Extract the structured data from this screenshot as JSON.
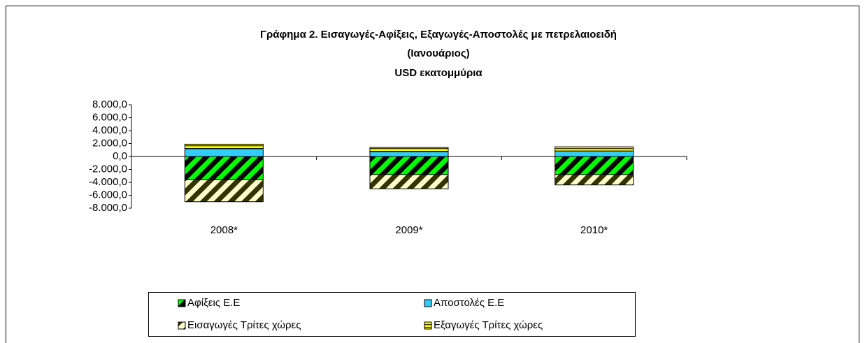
{
  "chart_data": {
    "type": "bar",
    "stacked": true,
    "title": [
      "Γράφημα 2. Εισαγωγές-Αφίξεις,  Εξαγωγές-Αποστολές με πετρελαιοειδή",
      "(Ιανουάριος)",
      "USD εκατομμύρια"
    ],
    "categories": [
      "2008*",
      "2009*",
      "2010*"
    ],
    "series": [
      {
        "name": "Αφίξεις Ε.Ε",
        "color": "#00ff00",
        "hatch": "#000000",
        "values": [
          -3600,
          -2800,
          -2800
        ]
      },
      {
        "name": "Αποστολές  Ε.Ε",
        "color": "#33ccff",
        "values": [
          1200,
          750,
          850
        ]
      },
      {
        "name": "Εισαγωγές Τρίτες χώρες",
        "color": "#ffffcc",
        "hatch": "#333300",
        "values": [
          -3400,
          -2200,
          -1600
        ]
      },
      {
        "name": "Εξαγωγές Τρίτες χώρες",
        "color": "#ffff00",
        "hatch": "#333300",
        "values": [
          700,
          650,
          650
        ]
      }
    ],
    "ylim": [
      -8000,
      8000
    ],
    "yticks": [
      {
        "value": -8000,
        "label": "-8.000,0"
      },
      {
        "value": -6000,
        "label": "-6.000,0"
      },
      {
        "value": -4000,
        "label": "-4.000,0"
      },
      {
        "value": -2000,
        "label": "-2.000,0"
      },
      {
        "value": 0,
        "label": "0,0"
      },
      {
        "value": 2000,
        "label": "2.000,0"
      },
      {
        "value": 4000,
        "label": "4.000,0"
      },
      {
        "value": 6000,
        "label": "6.000,0"
      },
      {
        "value": 8000,
        "label": "8.000,0"
      }
    ],
    "legend": "bottom"
  }
}
